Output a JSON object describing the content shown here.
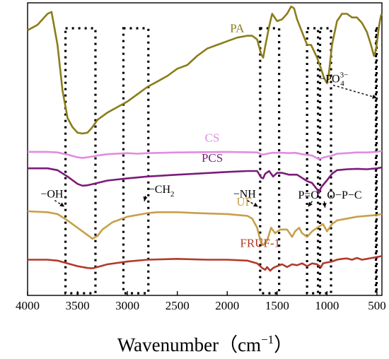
{
  "chart_data": {
    "type": "line",
    "xlabel": "Wavenumber（cm",
    "xlabel_exp": "−1",
    "xlabel_close": "）",
    "ylabel": "",
    "xlim": [
      4000,
      450
    ],
    "x_reversed": true,
    "x_ticks": [
      4000,
      3500,
      3000,
      2500,
      2000,
      1500,
      1000,
      500
    ],
    "x_tick_labels": [
      "4000",
      "3500",
      "3000",
      "2500",
      "2000",
      "1500",
      "1000",
      "500"
    ],
    "grid": false,
    "series": [
      {
        "name": "PA",
        "color": "#8b7d1a",
        "points": [
          [
            4000,
            0.93
          ],
          [
            3900,
            0.96
          ],
          [
            3800,
            1.02
          ],
          [
            3760,
            1.03
          ],
          [
            3700,
            0.85
          ],
          [
            3650,
            0.6
          ],
          [
            3600,
            0.45
          ],
          [
            3550,
            0.4
          ],
          [
            3500,
            0.37
          ],
          [
            3450,
            0.365
          ],
          [
            3400,
            0.37
          ],
          [
            3350,
            0.4
          ],
          [
            3300,
            0.44
          ],
          [
            3200,
            0.48
          ],
          [
            3100,
            0.51
          ],
          [
            3000,
            0.54
          ],
          [
            2900,
            0.58
          ],
          [
            2800,
            0.62
          ],
          [
            2700,
            0.65
          ],
          [
            2600,
            0.68
          ],
          [
            2500,
            0.72
          ],
          [
            2400,
            0.74
          ],
          [
            2300,
            0.79
          ],
          [
            2200,
            0.83
          ],
          [
            2100,
            0.85
          ],
          [
            2000,
            0.87
          ],
          [
            1900,
            0.89
          ],
          [
            1800,
            0.9
          ],
          [
            1750,
            0.9
          ],
          [
            1700,
            0.88
          ],
          [
            1660,
            0.8
          ],
          [
            1640,
            0.78
          ],
          [
            1620,
            0.84
          ],
          [
            1580,
            0.95
          ],
          [
            1550,
            1.02
          ],
          [
            1500,
            0.98
          ],
          [
            1450,
            0.99
          ],
          [
            1400,
            1.02
          ],
          [
            1360,
            1.06
          ],
          [
            1330,
            1.05
          ],
          [
            1300,
            0.99
          ],
          [
            1250,
            0.92
          ],
          [
            1200,
            0.85
          ],
          [
            1160,
            0.85
          ],
          [
            1100,
            0.78
          ],
          [
            1060,
            0.72
          ],
          [
            1030,
            0.67
          ],
          [
            1000,
            0.64
          ],
          [
            980,
            0.7
          ],
          [
            950,
            0.85
          ],
          [
            900,
            0.98
          ],
          [
            850,
            1.02
          ],
          [
            800,
            1.02
          ],
          [
            750,
            1.0
          ],
          [
            700,
            1.0
          ],
          [
            650,
            0.97
          ],
          [
            600,
            0.92
          ],
          [
            560,
            0.85
          ],
          [
            530,
            0.79
          ],
          [
            510,
            0.82
          ],
          [
            480,
            0.95
          ],
          [
            460,
            1.01
          ],
          [
            450,
            1.02
          ]
        ]
      },
      {
        "name": "CS",
        "color": "#e08de0",
        "points": [
          [
            4000,
            0.265
          ],
          [
            3800,
            0.265
          ],
          [
            3700,
            0.262
          ],
          [
            3600,
            0.25
          ],
          [
            3500,
            0.235
          ],
          [
            3450,
            0.232
          ],
          [
            3400,
            0.235
          ],
          [
            3300,
            0.245
          ],
          [
            3200,
            0.252
          ],
          [
            3000,
            0.258
          ],
          [
            2900,
            0.255
          ],
          [
            2800,
            0.258
          ],
          [
            2500,
            0.262
          ],
          [
            2000,
            0.265
          ],
          [
            1700,
            0.262
          ],
          [
            1650,
            0.25
          ],
          [
            1600,
            0.255
          ],
          [
            1550,
            0.26
          ],
          [
            1450,
            0.26
          ],
          [
            1380,
            0.258
          ],
          [
            1320,
            0.26
          ],
          [
            1250,
            0.252
          ],
          [
            1150,
            0.245
          ],
          [
            1080,
            0.225
          ],
          [
            1030,
            0.235
          ],
          [
            950,
            0.245
          ],
          [
            900,
            0.255
          ],
          [
            800,
            0.258
          ],
          [
            700,
            0.262
          ],
          [
            600,
            0.262
          ],
          [
            500,
            0.265
          ],
          [
            450,
            0.27
          ]
        ]
      },
      {
        "name": "PCS",
        "color": "#7b1c7b",
        "points": [
          [
            4000,
            0.175
          ],
          [
            3800,
            0.175
          ],
          [
            3700,
            0.165
          ],
          [
            3600,
            0.13
          ],
          [
            3500,
            0.09
          ],
          [
            3450,
            0.08
          ],
          [
            3400,
            0.082
          ],
          [
            3300,
            0.095
          ],
          [
            3200,
            0.108
          ],
          [
            3000,
            0.12
          ],
          [
            2800,
            0.13
          ],
          [
            2500,
            0.14
          ],
          [
            2000,
            0.155
          ],
          [
            1800,
            0.16
          ],
          [
            1700,
            0.16
          ],
          [
            1660,
            0.125
          ],
          [
            1640,
            0.12
          ],
          [
            1620,
            0.145
          ],
          [
            1580,
            0.16
          ],
          [
            1540,
            0.13
          ],
          [
            1500,
            0.15
          ],
          [
            1450,
            0.15
          ],
          [
            1380,
            0.14
          ],
          [
            1300,
            0.14
          ],
          [
            1200,
            0.105
          ],
          [
            1150,
            0.095
          ],
          [
            1100,
            0.06
          ],
          [
            1080,
            0.04
          ],
          [
            1060,
            0.07
          ],
          [
            1000,
            0.11
          ],
          [
            950,
            0.145
          ],
          [
            900,
            0.165
          ],
          [
            800,
            0.17
          ],
          [
            700,
            0.172
          ],
          [
            600,
            0.17
          ],
          [
            500,
            0.175
          ],
          [
            450,
            0.18
          ]
        ]
      },
      {
        "name": "UF",
        "color": "#c8a04a",
        "points": [
          [
            4000,
            -0.06
          ],
          [
            3800,
            -0.065
          ],
          [
            3700,
            -0.075
          ],
          [
            3600,
            -0.11
          ],
          [
            3500,
            -0.15
          ],
          [
            3400,
            -0.19
          ],
          [
            3350,
            -0.21
          ],
          [
            3300,
            -0.195
          ],
          [
            3250,
            -0.16
          ],
          [
            3150,
            -0.12
          ],
          [
            3000,
            -0.09
          ],
          [
            2800,
            -0.07
          ],
          [
            2700,
            -0.065
          ],
          [
            2500,
            -0.065
          ],
          [
            2300,
            -0.07
          ],
          [
            2000,
            -0.075
          ],
          [
            1800,
            -0.085
          ],
          [
            1750,
            -0.1
          ],
          [
            1700,
            -0.15
          ],
          [
            1660,
            -0.235
          ],
          [
            1640,
            -0.245
          ],
          [
            1600,
            -0.22
          ],
          [
            1560,
            -0.15
          ],
          [
            1520,
            -0.18
          ],
          [
            1470,
            -0.16
          ],
          [
            1400,
            -0.16
          ],
          [
            1350,
            -0.2
          ],
          [
            1320,
            -0.17
          ],
          [
            1280,
            -0.15
          ],
          [
            1250,
            -0.18
          ],
          [
            1200,
            -0.2
          ],
          [
            1150,
            -0.17
          ],
          [
            1100,
            -0.15
          ],
          [
            1040,
            -0.13
          ],
          [
            1000,
            -0.17
          ],
          [
            950,
            -0.13
          ],
          [
            900,
            -0.11
          ],
          [
            800,
            -0.1
          ],
          [
            700,
            -0.09
          ],
          [
            600,
            -0.085
          ],
          [
            500,
            -0.08
          ],
          [
            450,
            -0.075
          ]
        ]
      },
      {
        "name": "FRUF-1",
        "color": "#b23a2a",
        "points": [
          [
            4000,
            -0.325
          ],
          [
            3800,
            -0.325
          ],
          [
            3700,
            -0.33
          ],
          [
            3600,
            -0.345
          ],
          [
            3500,
            -0.36
          ],
          [
            3400,
            -0.37
          ],
          [
            3350,
            -0.372
          ],
          [
            3300,
            -0.365
          ],
          [
            3200,
            -0.35
          ],
          [
            3000,
            -0.335
          ],
          [
            2800,
            -0.325
          ],
          [
            2500,
            -0.32
          ],
          [
            2200,
            -0.325
          ],
          [
            2000,
            -0.325
          ],
          [
            1800,
            -0.33
          ],
          [
            1700,
            -0.345
          ],
          [
            1650,
            -0.37
          ],
          [
            1620,
            -0.38
          ],
          [
            1600,
            -0.365
          ],
          [
            1570,
            -0.385
          ],
          [
            1540,
            -0.37
          ],
          [
            1500,
            -0.36
          ],
          [
            1450,
            -0.35
          ],
          [
            1400,
            -0.365
          ],
          [
            1350,
            -0.35
          ],
          [
            1300,
            -0.355
          ],
          [
            1250,
            -0.345
          ],
          [
            1200,
            -0.36
          ],
          [
            1150,
            -0.345
          ],
          [
            1100,
            -0.35
          ],
          [
            1060,
            -0.365
          ],
          [
            1040,
            -0.345
          ],
          [
            1000,
            -0.34
          ],
          [
            950,
            -0.335
          ],
          [
            900,
            -0.325
          ],
          [
            850,
            -0.32
          ],
          [
            800,
            -0.318
          ],
          [
            750,
            -0.325
          ],
          [
            700,
            -0.315
          ],
          [
            650,
            -0.325
          ],
          [
            600,
            -0.32
          ],
          [
            550,
            -0.315
          ],
          [
            500,
            -0.31
          ],
          [
            450,
            -0.305
          ]
        ]
      }
    ],
    "series_labels": [
      {
        "name": "PA",
        "color": "#8b7d1a",
        "x": 1900,
        "y": 0.92
      },
      {
        "name": "CS",
        "color": "#e08de0",
        "x": 2150,
        "y": 0.32
      },
      {
        "name": "PCS",
        "color": "#7b1c7b",
        "x": 2150,
        "y": 0.21
      },
      {
        "name": "UF",
        "color": "#c8a04a",
        "x": 1830,
        "y": -0.03
      },
      {
        "name": "FRUF-1",
        "color": "#b23a2a",
        "x": 1670,
        "y": -0.255
      }
    ],
    "dashed_boxes": [
      {
        "x0": 3620,
        "x1": 3320
      },
      {
        "x0": 3040,
        "x1": 2790
      },
      {
        "x0": 1670,
        "x1": 1480
      },
      {
        "x0": 1200,
        "x1": 1090
      },
      {
        "x0": 1070,
        "x1": 960
      },
      {
        "x0": 510,
        "x1": 510
      }
    ],
    "annotations": [
      {
        "text": "−OH",
        "x": 3870,
        "y": 0.015,
        "arrow_to": [
          3630,
          -0.035
        ]
      },
      {
        "text": "−CH",
        "sub": "2",
        "x": 2790,
        "y": 0.04,
        "arrow_to": [
          2830,
          -0.005
        ]
      },
      {
        "text": "−NH",
        "x": 1940,
        "y": 0.015,
        "arrow_to": [
          1690,
          -0.035
        ]
      },
      {
        "text": "P=O",
        "x": 1290,
        "y": 0.01,
        "arrow_to": [
          1190,
          -0.035
        ]
      },
      {
        "text": "O−P−C",
        "x": 1000,
        "y": 0.01,
        "arrow_to": [
          1020,
          -0.04
        ]
      },
      {
        "text": "−PO",
        "sub": "4",
        "sup": "3−",
        "x": 1080,
        "y": 0.645,
        "arrow_to": [
          500,
          0.56
        ]
      }
    ]
  }
}
